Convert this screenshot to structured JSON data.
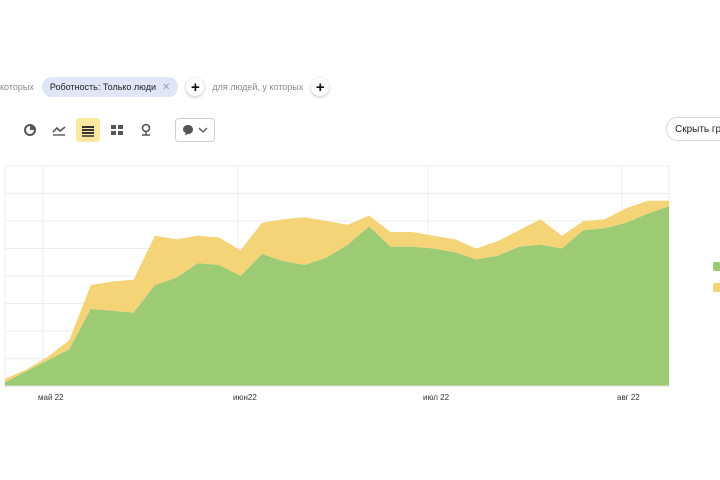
{
  "filters": {
    "prefix_text": "которых",
    "chip_label": "Роботность: Только люди",
    "add_text": "для людей, у которых"
  },
  "toolbar": {
    "hide_label": "Скрыть гр"
  },
  "colors": {
    "green": "#9ccb74",
    "yellow": "#f5d478",
    "grid": "#ececec",
    "active_tool": "#fce8a0"
  },
  "icons": [
    "pie-icon",
    "line-chart-icon",
    "stacked-area-icon",
    "bar-chart-icon",
    "map-pin-icon",
    "comment-icon",
    "chevron-down-icon"
  ],
  "chart_data": {
    "type": "area",
    "stacked": true,
    "x_ticks": [
      "май 22",
      "июн22",
      "июл 22",
      "авг 22"
    ],
    "x": [
      0,
      1,
      2,
      3,
      4,
      5,
      6,
      7,
      8,
      9,
      10,
      11,
      12,
      13,
      14,
      15,
      16,
      17,
      18,
      19,
      20,
      21,
      22,
      23,
      24,
      25,
      26,
      27,
      28,
      29,
      30,
      31
    ],
    "series": [
      {
        "color": "#9ccb74",
        "values": [
          2,
          8,
          14,
          20,
          42,
          41,
          40,
          55,
          59,
          67,
          66,
          60,
          72,
          68,
          66,
          70,
          77,
          87,
          76,
          76,
          75,
          73,
          69,
          71,
          76,
          77,
          75,
          85,
          86,
          89,
          94,
          98
        ]
      },
      {
        "color": "#f5d478",
        "values": [
          2,
          1,
          2,
          5,
          13,
          16,
          18,
          27,
          21,
          15,
          15,
          14,
          17,
          23,
          26,
          20,
          11,
          6,
          8,
          8,
          7,
          7,
          6,
          8,
          9,
          14,
          7,
          5,
          5,
          8,
          7,
          3
        ]
      }
    ],
    "ylim": [
      0,
      120
    ],
    "grid": true
  }
}
